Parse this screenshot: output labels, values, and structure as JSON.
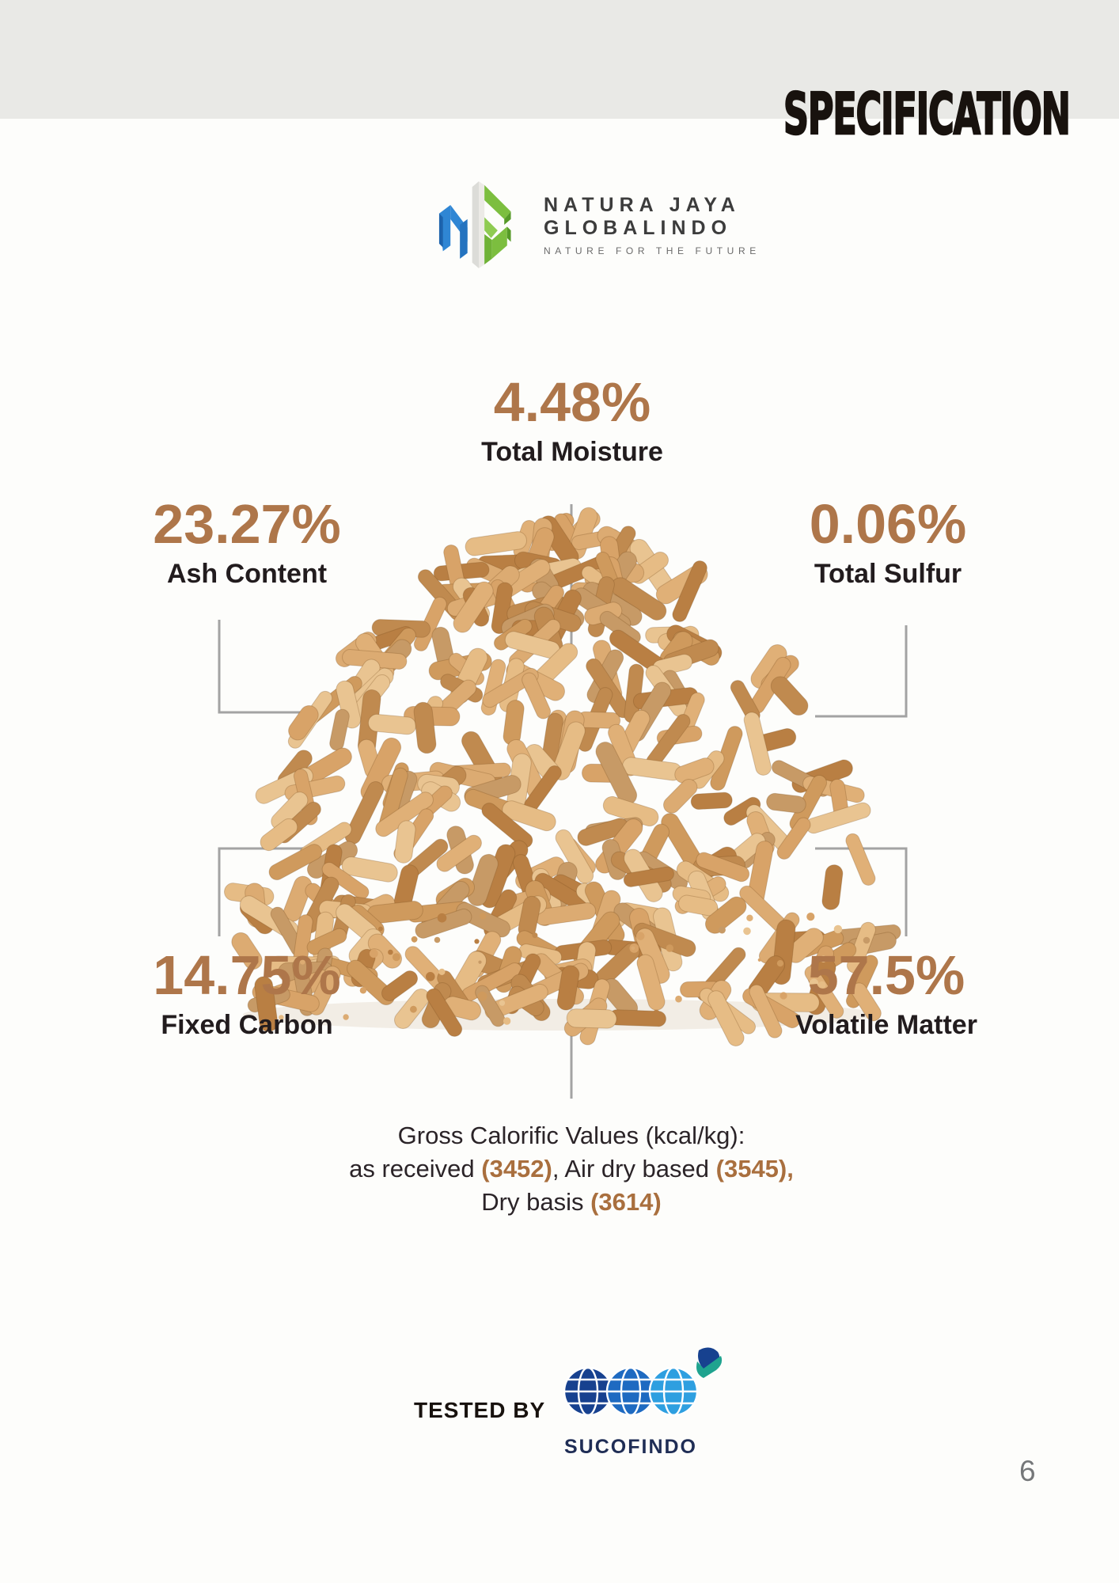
{
  "page": {
    "title": "SPECIFICATION",
    "page_number": "6"
  },
  "logo": {
    "name_line1": "NATURA JAYA",
    "name_line2": "GLOBALINDO",
    "tagline": "NATURE FOR THE FUTURE"
  },
  "stats": {
    "total_moisture": {
      "value": "4.48%",
      "label": "Total Moisture"
    },
    "ash_content": {
      "value": "23.27%",
      "label": "Ash Content"
    },
    "total_sulfur": {
      "value": "0.06%",
      "label": "Total Sulfur"
    },
    "fixed_carbon": {
      "value": "14.75%",
      "label": "Fixed Carbon"
    },
    "volatile_matter": {
      "value": "57.5%",
      "label": "Volatile Matter"
    }
  },
  "calorific": {
    "line1": "Gross  Calorific Values (kcal/kg):",
    "line2_prefix": "as received ",
    "line2_value1": "(3452)",
    "line2_mid": ", Air dry based ",
    "line2_value2": "(3545)",
    "line2_suffix": ",",
    "line3_prefix": "Dry basis ",
    "line3_value": "(3614)"
  },
  "footer": {
    "tested_by_label": "TESTED BY",
    "lab_name": "SUCOFINDO"
  },
  "colors": {
    "accent_brown": "#ae764a",
    "accent_brown_dark": "#a96f3e",
    "band_gray": "#e9e9e6",
    "connector_gray": "#a3a3a3",
    "logo_blue": "#2f86d4",
    "logo_green": "#7cbe3f",
    "sucofindo_navy": "#17418f",
    "sucofindo_blue": "#1e6ac1",
    "sucofindo_light_blue": "#2e9fe0"
  }
}
